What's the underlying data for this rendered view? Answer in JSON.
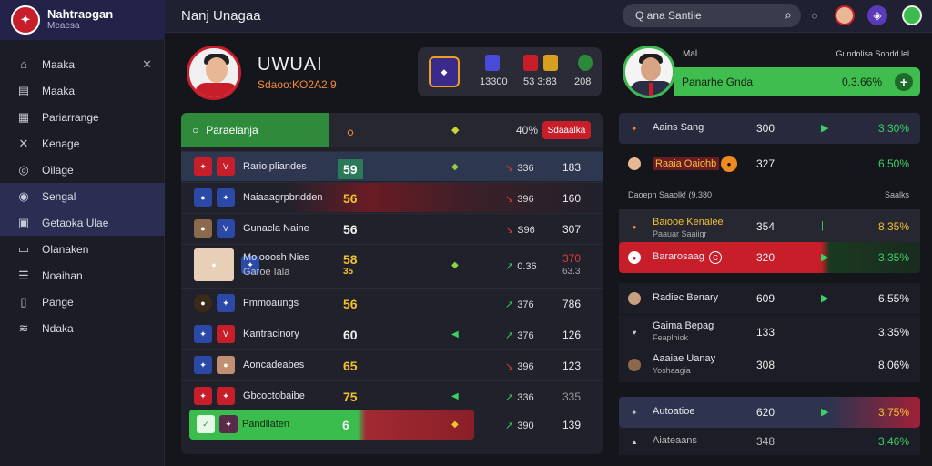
{
  "brand": {
    "title": "Nahtraogan",
    "subtitle": "Meaesa"
  },
  "topbar": {
    "title": "Nanj Unagaa",
    "search_placeholder": "Q ana Santiie"
  },
  "sidebar": {
    "items": [
      {
        "label": "Maaka",
        "icon": "home-icon"
      },
      {
        "label": "Maaka",
        "icon": "list-icon"
      },
      {
        "label": "Pariarrange",
        "icon": "calendar-icon"
      },
      {
        "label": "Kenage",
        "icon": "close-icon"
      },
      {
        "label": "Oilage",
        "icon": "target-icon"
      },
      {
        "label": "Sengal",
        "icon": "shield-icon"
      },
      {
        "label": "Getaoka Ulae",
        "icon": "trophy-icon"
      },
      {
        "label": "Olanaken",
        "icon": "bars-icon"
      },
      {
        "label": "Noaihan",
        "icon": "menu-icon"
      },
      {
        "label": "Pange",
        "icon": "page-icon"
      },
      {
        "label": "Ndaka",
        "icon": "wifi-icon"
      }
    ]
  },
  "hero": {
    "name": "UWUAI",
    "subtitle": "Sdaoo:KO2A2.9"
  },
  "match": {
    "score_left": "13300",
    "score_mid": "53 3:83",
    "score_right": "208"
  },
  "table": {
    "header": {
      "label": "Paraelanja",
      "col_pct": "40%",
      "button": "Sdaaalka"
    },
    "rows": [
      {
        "name": "Rarioipliandes",
        "score": "59",
        "pct": "336",
        "val": "183",
        "score_color": "#3ad16a",
        "c1": "#c81e2a",
        "c2": "#c81e2a"
      },
      {
        "name": "Naiaaagrpbndden",
        "score": "56",
        "pct": "396",
        "val": "160",
        "score_color": "#f2c12e",
        "c1": "#2b4aa8",
        "c2": "#2b4aa8"
      },
      {
        "name": "Gunacla Naine",
        "score": "56",
        "pct": "S96",
        "val": "307",
        "score_color": "#eeeeee",
        "c1": "#8a6a4a",
        "c2": "#2b4aa8"
      },
      {
        "name": "Molooosh Nies",
        "name2": "Garoe Iala",
        "score": "58",
        "score2": "35",
        "pct": "0.36",
        "val": "370",
        "val2": "63.3",
        "score_color": "#f2c12e",
        "c1": "#e8d0b8",
        "c2": "#2b4aa8"
      },
      {
        "name": "Fmmoaungs",
        "score": "56",
        "pct": "376",
        "val": "786",
        "score_color": "#f2c12e",
        "c1": "#3a2a1a",
        "c2": "#2b4aa8"
      },
      {
        "name": "Kantracinory",
        "score": "60",
        "pct": "376",
        "val": "126",
        "score_color": "#eeeeee",
        "c1": "#2b4aa8",
        "c2": "#c81e2a"
      },
      {
        "name": "Aoncadeabes",
        "score": "65",
        "pct": "396",
        "val": "123",
        "score_color": "#f2c12e",
        "c1": "#2b4aa8",
        "c2": "#c09070"
      },
      {
        "name": "Gbcoctobaibe",
        "score": "75",
        "pct": "336",
        "val": "335",
        "score_color": "#f2c12e",
        "c1": "#c81e2a",
        "c2": "#c81e2a"
      },
      {
        "name": "Pandllaten",
        "score": "6",
        "pct": "390",
        "val": "139",
        "score_color": "#eeeeee",
        "c1": "#3bbd4e",
        "c2": "#5a2a4a"
      }
    ]
  },
  "right": {
    "label": "Mal",
    "meta": "Gundolisa   Sondd lel",
    "bar_name": "Panarhe Gnda",
    "bar_pct": "0.3.66%",
    "section1": "Daoepn Saaolk! (9.380",
    "section1_right": "Saalks",
    "rows": [
      {
        "name": "Aains Sang",
        "score": "300",
        "pct": "3.30%"
      },
      {
        "name": "Raaia Oaiohb",
        "score": "327",
        "pct": "6.50%"
      },
      {
        "name": "Baiooe Kenalee",
        "name2": "Paauar Saaiigr",
        "score": "354",
        "pct": "8.35%"
      },
      {
        "name": "Bararosaag",
        "score": "320",
        "pct": "3.35%"
      },
      {
        "name": "Radiec Benary",
        "score": "609",
        "pct": "6.55%"
      },
      {
        "name": "Gaima Bepag",
        "name2": "Feaplhiok",
        "score": "133",
        "pct": "3.35%"
      },
      {
        "name": "Aaaiae Uanay",
        "name2": "Yoshaagia",
        "score": "308",
        "pct": "8.06%"
      },
      {
        "name": "Autoatioe",
        "score": "620",
        "pct": "3.75%"
      },
      {
        "name": "Aiateaans",
        "score": "348",
        "pct": "3.46%"
      }
    ]
  }
}
